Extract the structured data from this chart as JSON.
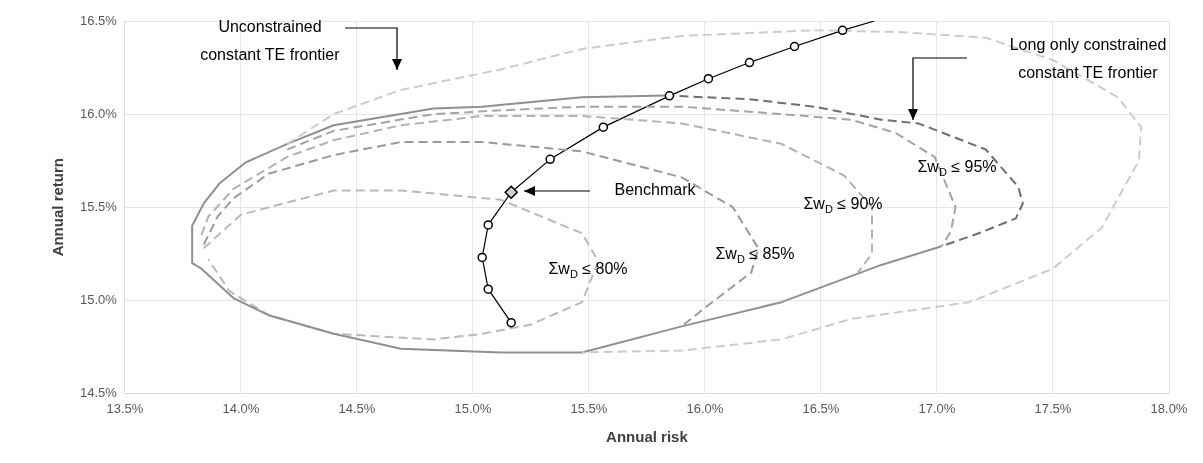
{
  "chart_data": {
    "type": "line",
    "xlabel": "Annual risk",
    "ylabel": "Annual return",
    "xlim": [
      13.5,
      18.0
    ],
    "ylim": [
      14.5,
      16.5
    ],
    "xticks": [
      {
        "value": 13.5,
        "label": "13.5%"
      },
      {
        "value": 14.0,
        "label": "14.0%"
      },
      {
        "value": 14.5,
        "label": "14.5%"
      },
      {
        "value": 15.0,
        "label": "15.0%"
      },
      {
        "value": 15.5,
        "label": "15.5%"
      },
      {
        "value": 16.0,
        "label": "16.0%"
      },
      {
        "value": 16.5,
        "label": "16.5%"
      },
      {
        "value": 17.0,
        "label": "17.0%"
      },
      {
        "value": 17.5,
        "label": "17.5%"
      },
      {
        "value": 18.0,
        "label": "18.0%"
      }
    ],
    "yticks": [
      {
        "value": 14.5,
        "label": "14.5%"
      },
      {
        "value": 15.0,
        "label": "15.0%"
      },
      {
        "value": 15.5,
        "label": "15.5%"
      },
      {
        "value": 16.0,
        "label": "16.0%"
      },
      {
        "value": 16.5,
        "label": "16.5%"
      }
    ],
    "grid": true,
    "legend": false,
    "series": [
      {
        "color": "#cccccc",
        "line_style": "dashed",
        "marker": "none",
        "x": [
          14.2,
          14.4,
          14.69,
          15.12,
          15.47,
          15.9,
          16.47,
          16.85,
          17.21,
          17.5,
          17.78,
          17.88,
          17.87,
          17.71,
          17.5,
          17.14,
          16.63,
          16.33,
          15.9,
          15.47
        ],
        "values": [
          15.84,
          16.0,
          16.13,
          16.24,
          16.35,
          16.42,
          16.45,
          16.44,
          16.41,
          16.29,
          16.09,
          15.93,
          15.75,
          15.39,
          15.17,
          14.99,
          14.9,
          14.79,
          14.73,
          14.72
        ]
      },
      {
        "color": "#909090",
        "line_style": "solid",
        "marker": "none",
        "x": [
          15.83,
          15.47,
          15.04,
          14.83,
          14.4,
          14.2,
          14.02,
          13.91,
          13.84,
          13.79,
          13.79,
          13.83,
          13.97,
          14.12,
          14.4,
          14.69,
          15.12,
          15.47,
          15.9,
          16.33,
          16.76,
          17.02
        ],
        "values": [
          16.1,
          16.09,
          16.04,
          16.03,
          15.94,
          15.84,
          15.74,
          15.63,
          15.52,
          15.4,
          15.2,
          15.17,
          15.01,
          14.92,
          14.82,
          14.74,
          14.72,
          14.72,
          14.86,
          14.99,
          15.19,
          15.29
        ]
      },
      {
        "color": "#6e6e6e",
        "line_style": "dashed",
        "marker": "none",
        "x": [
          15.83,
          16.19,
          16.47,
          16.76,
          16.92,
          17.21,
          17.35,
          17.37,
          17.34,
          17.18,
          17.02
        ],
        "values": [
          16.1,
          16.08,
          16.04,
          15.97,
          15.95,
          15.81,
          15.61,
          15.52,
          15.44,
          15.36,
          15.29
        ]
      },
      {
        "color": "#a4a4a4",
        "line_style": "dashed",
        "marker": "none",
        "x": [
          14.2,
          14.4,
          14.83,
          15.12,
          15.47,
          15.9,
          16.33,
          16.63,
          16.82,
          16.99,
          17.08,
          17.06,
          17.02
        ],
        "values": [
          15.81,
          15.91,
          16.0,
          16.02,
          16.04,
          16.04,
          16.0,
          15.97,
          15.9,
          15.77,
          15.5,
          15.37,
          15.29
        ]
      },
      {
        "color": "#b2b2b2",
        "line_style": "dashed",
        "marker": "none",
        "x": [
          13.83,
          13.86,
          13.97,
          14.2,
          14.4,
          14.69,
          15.04,
          15.47,
          15.9,
          16.33,
          16.6,
          16.72,
          16.72,
          16.66
        ],
        "values": [
          15.35,
          15.45,
          15.6,
          15.77,
          15.86,
          15.94,
          15.99,
          15.99,
          15.95,
          15.84,
          15.67,
          15.5,
          15.25,
          15.15
        ]
      },
      {
        "color": "#9a9a9a",
        "line_style": "dashed",
        "marker": "none",
        "x": [
          13.84,
          13.9,
          13.97,
          14.12,
          14.4,
          14.69,
          15.04,
          15.47,
          15.9,
          16.12,
          16.23,
          16.2,
          16.0,
          15.91
        ],
        "values": [
          15.3,
          15.45,
          15.55,
          15.68,
          15.78,
          15.85,
          15.85,
          15.8,
          15.66,
          15.5,
          15.28,
          15.15,
          14.96,
          14.87
        ]
      },
      {
        "color": "#bababa",
        "line_style": "dashed",
        "marker": "none",
        "x": [
          13.84,
          14.0,
          14.4,
          14.69,
          15.12,
          15.47,
          15.54,
          15.47,
          15.25,
          15.04,
          14.83,
          14.4,
          14.12,
          13.95,
          13.86
        ],
        "values": [
          15.28,
          15.46,
          15.59,
          15.59,
          15.54,
          15.36,
          15.21,
          14.99,
          14.87,
          14.82,
          14.79,
          14.82,
          14.92,
          15.05,
          15.22
        ]
      },
      {
        "color": "#000000",
        "line_style": "solid",
        "marker": "none",
        "x": [
          15.165,
          15.066,
          15.04,
          15.066,
          15.165,
          15.333,
          15.562,
          15.847,
          16.015,
          16.192,
          16.386,
          16.593,
          16.73
        ],
        "values": [
          14.88,
          15.06,
          15.23,
          15.405,
          15.58,
          15.757,
          15.93,
          16.098,
          16.19,
          16.277,
          16.363,
          16.45,
          16.5
        ]
      },
      {
        "type": "scatter",
        "color": "#000000",
        "marker": "circle",
        "x": [
          15.165,
          15.066,
          15.04,
          15.066,
          15.333,
          15.562,
          15.847,
          16.015,
          16.192,
          16.386,
          16.593
        ],
        "values": [
          14.88,
          15.06,
          15.23,
          15.405,
          15.757,
          15.93,
          16.098,
          16.19,
          16.277,
          16.363,
          16.45
        ]
      },
      {
        "type": "scatter",
        "color": "#d0d0d0",
        "marker": "diamond",
        "x": [
          15.165
        ],
        "values": [
          15.58
        ]
      }
    ],
    "annotations": [
      "Unconstrained\nconstant TE frontier",
      "Long only constrained\nconstant TE frontier",
      "Benchmark",
      "Σw$_{D}$ ≤ 95%",
      "Σw$_{D}$ ≤ 90%",
      "Σw$_{D}$ ≤ 85%",
      "Σw$_{D}$ ≤ 80%"
    ]
  }
}
